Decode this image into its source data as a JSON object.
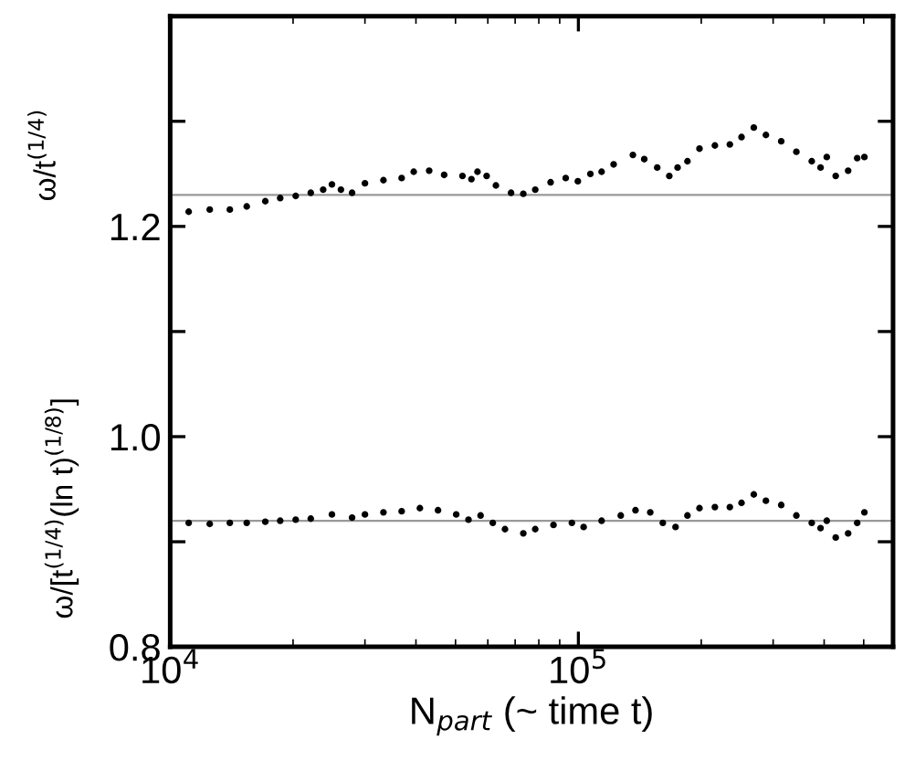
{
  "chart_data": {
    "type": "scatter",
    "xlabel": "N$_{part}$ (~ time t)",
    "ylabel": "ω/t$^{(1/4)}$",
    "annotations": [
      "ω/[t$^{(1/4)}$(ln t)$^{(1/8)}$]"
    ],
    "log": "x",
    "marker": "circle",
    "grid": false,
    "legend": false,
    "xlim": [
      10000,
      590000
    ],
    "xticks": [
      {
        "value": 10000,
        "label": "10$^{4}$"
      },
      {
        "value": 100000,
        "label": "10$^{5}$"
      }
    ],
    "ylim": [
      0.8,
      1.4
    ],
    "yticks": [
      0.8,
      {
        "value": 0.9,
        "label": null
      },
      {
        "value": 1.0,
        "label": "1.0"
      },
      {
        "value": 1.1,
        "label": null
      },
      1.2,
      {
        "value": 1.3,
        "label": null
      }
    ],
    "ref_lines": [
      {
        "axis": "y",
        "value": 1.23,
        "color": "#999999"
      },
      {
        "axis": "y",
        "value": 0.92,
        "color": "#999999"
      }
    ],
    "series": [
      {
        "color": "#000000",
        "x": [
          11100,
          12500,
          14000,
          15400,
          17100,
          18600,
          20300,
          22100,
          23700,
          24900,
          26200,
          27900,
          30000,
          33300,
          36900,
          39500,
          43100,
          46900,
          52000,
          54700,
          56600,
          59600,
          62800,
          68400,
          73300,
          78400,
          85500,
          93100,
          99700,
          107000,
          114000,
          122000,
          136000,
          145000,
          156000,
          167000,
          175000,
          185000,
          198000,
          216000,
          235000,
          251000,
          269000,
          288000,
          314000,
          342000,
          373000,
          392000,
          406000,
          427000,
          458000,
          482000,
          502000
        ],
        "values": [
          1.214,
          1.216,
          1.216,
          1.219,
          1.224,
          1.227,
          1.229,
          1.232,
          1.235,
          1.24,
          1.235,
          1.232,
          1.241,
          1.244,
          1.246,
          1.252,
          1.253,
          1.249,
          1.248,
          1.245,
          1.252,
          1.248,
          1.239,
          1.232,
          1.231,
          1.235,
          1.242,
          1.246,
          1.243,
          1.25,
          1.252,
          1.259,
          1.268,
          1.264,
          1.256,
          1.248,
          1.256,
          1.262,
          1.274,
          1.277,
          1.278,
          1.285,
          1.294,
          1.287,
          1.281,
          1.271,
          1.262,
          1.256,
          1.266,
          1.248,
          1.253,
          1.265,
          1.266
        ]
      },
      {
        "color": "#000000",
        "x": [
          11100,
          12500,
          14000,
          15400,
          17100,
          18600,
          20300,
          22100,
          24900,
          27900,
          30000,
          33300,
          36900,
          40900,
          45300,
          50200,
          53800,
          57600,
          61700,
          66100,
          73300,
          78400,
          86900,
          96400,
          103000,
          114000,
          127000,
          138000,
          150000,
          161000,
          173000,
          185000,
          198000,
          216000,
          235000,
          251000,
          269000,
          288000,
          314000,
          342000,
          373000,
          392000,
          406000,
          427000,
          458000,
          482000,
          502000
        ],
        "values": [
          0.918,
          0.917,
          0.918,
          0.918,
          0.919,
          0.92,
          0.921,
          0.922,
          0.926,
          0.923,
          0.926,
          0.928,
          0.929,
          0.932,
          0.93,
          0.926,
          0.921,
          0.925,
          0.918,
          0.912,
          0.908,
          0.912,
          0.916,
          0.918,
          0.914,
          0.92,
          0.925,
          0.93,
          0.928,
          0.918,
          0.914,
          0.925,
          0.932,
          0.933,
          0.933,
          0.937,
          0.945,
          0.939,
          0.935,
          0.925,
          0.918,
          0.913,
          0.92,
          0.904,
          0.908,
          0.918,
          0.928
        ]
      }
    ]
  }
}
